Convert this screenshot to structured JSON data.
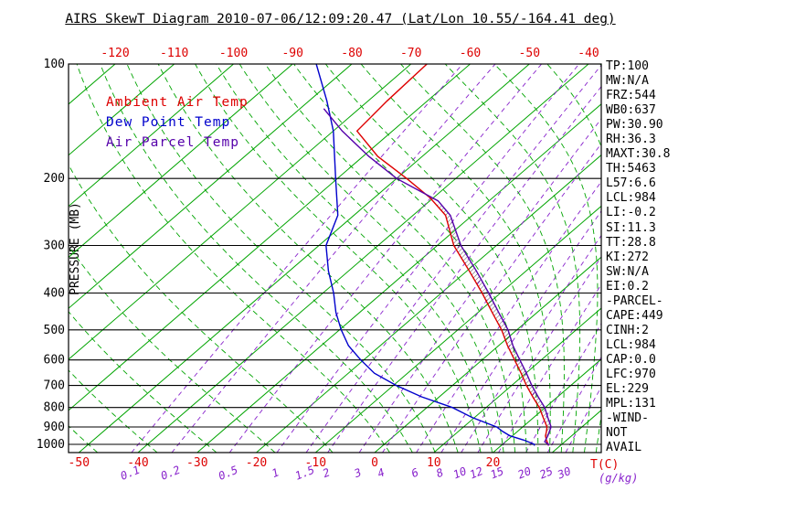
{
  "title": "AIRS SkewT Diagram 2010-07-06/12:09:20.47 (Lat/Lon 10.55/-164.41 deg)",
  "legend": {
    "ambient": {
      "label": "Ambient Air Temp",
      "color": "#dd0000"
    },
    "dewpoint": {
      "label": "Dew Point Temp",
      "color": "#0000cc"
    },
    "parcel": {
      "label": "Air Parcel Temp",
      "color": "#5500aa"
    }
  },
  "axes": {
    "pressure_label": "PRESSURE (MB)",
    "pressure_ticks": [
      100,
      200,
      300,
      400,
      500,
      600,
      700,
      800,
      900,
      1000
    ],
    "top_temp_ticks": [
      -120,
      -110,
      -100,
      -90,
      -80,
      -70,
      -60,
      -50,
      -40
    ],
    "bottom_temp_ticks": [
      -50,
      -40,
      -30,
      -20,
      -10,
      0,
      10,
      20
    ],
    "temp_unit_label": "T(C)",
    "mixing_unit_label": "(g/kg)"
  },
  "right_panel": {
    "lines": [
      "TP:100",
      "MW:N/A",
      "FRZ:544",
      "WB0:637",
      "PW:30.90",
      "RH:36.3",
      "MAXT:30.8",
      "TH:5463",
      "L57:6.6",
      "LCL:984",
      "LI:-0.2",
      "SI:11.3",
      "TT:28.8",
      "KI:272",
      "SW:N/A",
      "EI:0.2",
      "-PARCEL-",
      "CAPE:449",
      "CINH:2",
      "LCL:984",
      "CAP:0.0",
      "LFC:970",
      "EL:229",
      "MPL:131",
      "-WIND-",
      "NOT",
      "AVAIL"
    ]
  },
  "chart_data": {
    "type": "line",
    "title": "AIRS SkewT Diagram",
    "xlabel": "Temperature (C)",
    "ylabel": "Pressure (MB)",
    "pressure_range": [
      100,
      1051
    ],
    "grid": "skew-t log-p",
    "legend_position": "upper-left",
    "isotherms_c": {
      "min": -130,
      "max": 40,
      "step": 10
    },
    "mixing_ratio_lines_g_kg": [
      0.1,
      0.2,
      0.5,
      1,
      1.5,
      2,
      3,
      4,
      6,
      8,
      10,
      12,
      15,
      20,
      25,
      30
    ],
    "moist_adiabats_c": [
      -50,
      -40,
      -30,
      -20,
      -10,
      0,
      4,
      8,
      12,
      16,
      18,
      20,
      22,
      24,
      26,
      28,
      30,
      32,
      34,
      36,
      38
    ],
    "colors": {
      "isotherm": "#00a400",
      "mixing_ratio": "#8822cc",
      "pressure_line": "#000000"
    },
    "cape_hatch": {
      "p_bottom": 965,
      "p_top": 234
    },
    "series": [
      {
        "id": "ambient-temp-curve",
        "name": "Ambient Air Temp",
        "color": "#dd0000",
        "points_p_t": [
          [
            1008,
            28.0
          ],
          [
            1000,
            27.7
          ],
          [
            975,
            26.6
          ],
          [
            950,
            25.6
          ],
          [
            925,
            24.9
          ],
          [
            900,
            24.1
          ],
          [
            850,
            21.6
          ],
          [
            800,
            19.0
          ],
          [
            750,
            15.8
          ],
          [
            700,
            12.5
          ],
          [
            650,
            9.2
          ],
          [
            600,
            5.5
          ],
          [
            550,
            1.5
          ],
          [
            500,
            -2.6
          ],
          [
            450,
            -7.6
          ],
          [
            400,
            -13.1
          ],
          [
            350,
            -19.6
          ],
          [
            300,
            -27.2
          ],
          [
            250,
            -34.5
          ],
          [
            225,
            -40.5
          ],
          [
            200,
            -48.3
          ],
          [
            175,
            -57.5
          ],
          [
            150,
            -66.0
          ],
          [
            125,
            -66.8
          ],
          [
            100,
            -67.3
          ]
        ]
      },
      {
        "id": "dew-point-curve",
        "name": "Dew Point Temp",
        "color": "#0000cc",
        "points_p_t": [
          [
            1008,
            25.6
          ],
          [
            1000,
            25.4
          ],
          [
            975,
            22.8
          ],
          [
            950,
            19.6
          ],
          [
            925,
            17.5
          ],
          [
            900,
            15.6
          ],
          [
            850,
            9.6
          ],
          [
            800,
            4.3
          ],
          [
            750,
            -3.0
          ],
          [
            700,
            -9.5
          ],
          [
            650,
            -15.6
          ],
          [
            600,
            -20.5
          ],
          [
            550,
            -25.4
          ],
          [
            500,
            -29.7
          ],
          [
            450,
            -34.0
          ],
          [
            400,
            -38.2
          ],
          [
            350,
            -43.4
          ],
          [
            300,
            -48.8
          ],
          [
            250,
            -52.7
          ],
          [
            200,
            -60.3
          ],
          [
            150,
            -70.0
          ],
          [
            125,
            -77.0
          ],
          [
            100,
            -86.0
          ]
        ]
      },
      {
        "id": "parcel-temp-curve",
        "name": "Air Parcel Temp",
        "color": "#5500aa",
        "points_p_t": [
          [
            1008,
            28.0
          ],
          [
            1000,
            27.8
          ],
          [
            984,
            26.6
          ],
          [
            950,
            26.0
          ],
          [
            925,
            25.4
          ],
          [
            900,
            24.8
          ],
          [
            850,
            22.4
          ],
          [
            800,
            19.9
          ],
          [
            750,
            16.7
          ],
          [
            700,
            13.4
          ],
          [
            650,
            10.1
          ],
          [
            600,
            6.4
          ],
          [
            550,
            2.4
          ],
          [
            500,
            -1.5
          ],
          [
            450,
            -6.5
          ],
          [
            400,
            -12.0
          ],
          [
            350,
            -18.4
          ],
          [
            300,
            -26.0
          ],
          [
            250,
            -33.7
          ],
          [
            229,
            -38.6
          ],
          [
            200,
            -50.0
          ],
          [
            175,
            -59.0
          ],
          [
            150,
            -68.5
          ],
          [
            131,
            -76.0
          ]
        ]
      }
    ]
  }
}
